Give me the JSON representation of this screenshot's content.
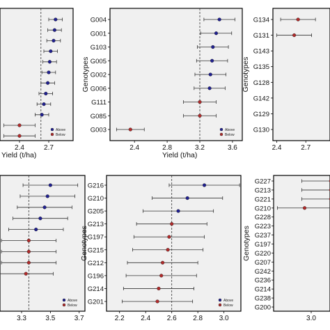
{
  "chart_data": [
    {
      "type": "scatter",
      "panel": "top-left",
      "categories": [
        "",
        "",
        "",
        "",
        "",
        "",
        "",
        "",
        "",
        "",
        ""
      ],
      "xlabel": "Yield (t/ha)",
      "ylabel": "",
      "xticks": [
        2.4,
        2.7
      ],
      "xlim": [
        2.2,
        2.95
      ],
      "reference_line": 2.62,
      "legend": {
        "entries": [
          "Above",
          "Below"
        ],
        "placement": "bottom-right"
      },
      "series": [
        {
          "name": "Above",
          "color": "#1f1f8f",
          "values": [
            2.77,
            2.76,
            2.75,
            2.72,
            2.71,
            2.7,
            2.69,
            2.67,
            2.65,
            2.63
          ],
          "lower": [
            2.7,
            2.69,
            2.68,
            2.65,
            2.64,
            2.63,
            2.62,
            2.6,
            2.58,
            2.56
          ],
          "upper": [
            2.84,
            2.83,
            2.82,
            2.79,
            2.78,
            2.77,
            2.76,
            2.74,
            2.72,
            2.7
          ]
        },
        {
          "name": "Below",
          "color": "#b02a2a",
          "values": [
            2.4,
            2.4
          ],
          "lower": [
            2.24,
            2.24
          ],
          "upper": [
            2.56,
            2.56
          ]
        }
      ]
    },
    {
      "type": "scatter",
      "panel": "top-middle",
      "categories": [
        "G004",
        "G001",
        "G103",
        "G005",
        "G002",
        "G006",
        "G111",
        "G085",
        "G003"
      ],
      "xlabel": "Yield (t/ha)",
      "ylabel": "Genotypes",
      "xticks": [
        2.4,
        2.8,
        3.2,
        3.6
      ],
      "xlim": [
        2.1,
        3.72
      ],
      "reference_line": 3.2,
      "legend": {
        "entries": [
          "Above",
          "Below"
        ],
        "placement": "bottom-right"
      },
      "series": [
        {
          "name": "Above",
          "color": "#1f1f8f",
          "values": [
            3.44,
            3.4,
            3.36,
            3.35,
            3.33,
            3.32
          ],
          "lower": [
            3.25,
            3.21,
            3.17,
            3.16,
            3.14,
            3.13
          ],
          "upper": [
            3.63,
            3.59,
            3.55,
            3.54,
            3.52,
            3.51
          ]
        },
        {
          "name": "Below",
          "color": "#b02a2a",
          "values": [
            3.2,
            3.2,
            2.35
          ],
          "lower": [
            3.0,
            3.0,
            2.18
          ],
          "upper": [
            3.4,
            3.4,
            2.52
          ]
        }
      ]
    },
    {
      "type": "scatter",
      "panel": "top-right",
      "categories": [
        "G134",
        "G131",
        "G143",
        "G135",
        "G128",
        "G142",
        "G129",
        "G130"
      ],
      "xlabel": "",
      "ylabel": "Genotypes",
      "xticks": [
        2.4,
        2.7
      ],
      "xlim": [
        2.36,
        2.95
      ],
      "reference_line": null,
      "legend": null,
      "series": [
        {
          "name": "Above",
          "color": "#1f1f8f",
          "values": [],
          "lower": [],
          "upper": []
        },
        {
          "name": "Below",
          "color": "#b02a2a",
          "values": [
            2.62,
            2.58
          ],
          "lower": [
            2.44,
            2.4
          ],
          "upper": [
            2.8,
            2.76
          ]
        }
      ]
    },
    {
      "type": "scatter",
      "panel": "bottom-left",
      "categories": [
        "",
        "",
        "",
        "",
        "",
        "",
        "",
        "",
        "",
        "",
        ""
      ],
      "xlabel": "",
      "ylabel": "",
      "xticks": [
        3.3,
        3.5,
        3.7
      ],
      "xlim": [
        3.15,
        3.74
      ],
      "reference_line": 3.35,
      "legend": {
        "entries": [
          "Above",
          "Below"
        ],
        "placement": "bottom-right"
      },
      "series": [
        {
          "name": "Above",
          "color": "#1f1f8f",
          "values": [
            3.5,
            3.48,
            3.46,
            3.43,
            3.4
          ],
          "lower": [
            3.31,
            3.29,
            3.27,
            3.24,
            3.21
          ],
          "upper": [
            3.69,
            3.67,
            3.65,
            3.62,
            3.59
          ]
        },
        {
          "name": "Below",
          "color": "#b02a2a",
          "values": [
            3.35,
            3.35,
            3.35,
            3.33
          ],
          "lower": [
            3.16,
            3.16,
            3.16,
            3.14
          ],
          "upper": [
            3.54,
            3.54,
            3.54,
            3.52
          ]
        }
      ]
    },
    {
      "type": "scatter",
      "panel": "bottom-middle",
      "categories": [
        "G216",
        "G210",
        "G205",
        "G213",
        "G197",
        "G215",
        "G212",
        "G196",
        "G214",
        "G201"
      ],
      "xlabel": "",
      "ylabel": "Genotypes",
      "xticks": [
        2.2,
        2.4,
        2.6,
        2.8,
        3.0
      ],
      "xlim": [
        2.1,
        3.13
      ],
      "reference_line": 2.6,
      "legend": {
        "entries": [
          "Above",
          "Below"
        ],
        "placement": "bottom-right"
      },
      "series": [
        {
          "name": "Above",
          "color": "#1f1f8f",
          "values": [
            2.85,
            2.72,
            2.65
          ],
          "lower": [
            2.58,
            2.45,
            2.38
          ],
          "upper": [
            3.12,
            2.99,
            2.92
          ]
        },
        {
          "name": "Below",
          "color": "#b02a2a",
          "values": [
            2.6,
            2.58,
            2.57,
            2.53,
            2.52,
            2.5,
            2.49
          ],
          "lower": [
            2.33,
            2.31,
            2.3,
            2.26,
            2.25,
            2.23,
            2.22
          ],
          "upper": [
            2.87,
            2.85,
            2.84,
            2.8,
            2.79,
            2.77,
            2.76
          ]
        }
      ]
    },
    {
      "type": "scatter",
      "panel": "bottom-right",
      "categories": [
        "G227",
        "G213",
        "G221",
        "G210",
        "G228",
        "G223",
        "G237",
        "G197",
        "G220",
        "G207",
        "G242",
        "G236",
        "G214",
        "G238",
        "G200"
      ],
      "xlabel": "",
      "ylabel": "Genotypes",
      "xticks": [
        3.0
      ],
      "xlim": [
        2.6,
        3.2
      ],
      "reference_line": null,
      "legend": null,
      "series": [
        {
          "name": "Above",
          "color": "#1f1f8f",
          "values": [],
          "lower": [],
          "upper": []
        },
        {
          "name": "Below",
          "color": "#b02a2a",
          "values": [
            3.21,
            3.21,
            3.21,
            2.93
          ],
          "lower": [
            2.9,
            2.9,
            2.9,
            2.64
          ],
          "upper": [
            3.52,
            3.52,
            3.52,
            3.22
          ]
        }
      ]
    }
  ]
}
